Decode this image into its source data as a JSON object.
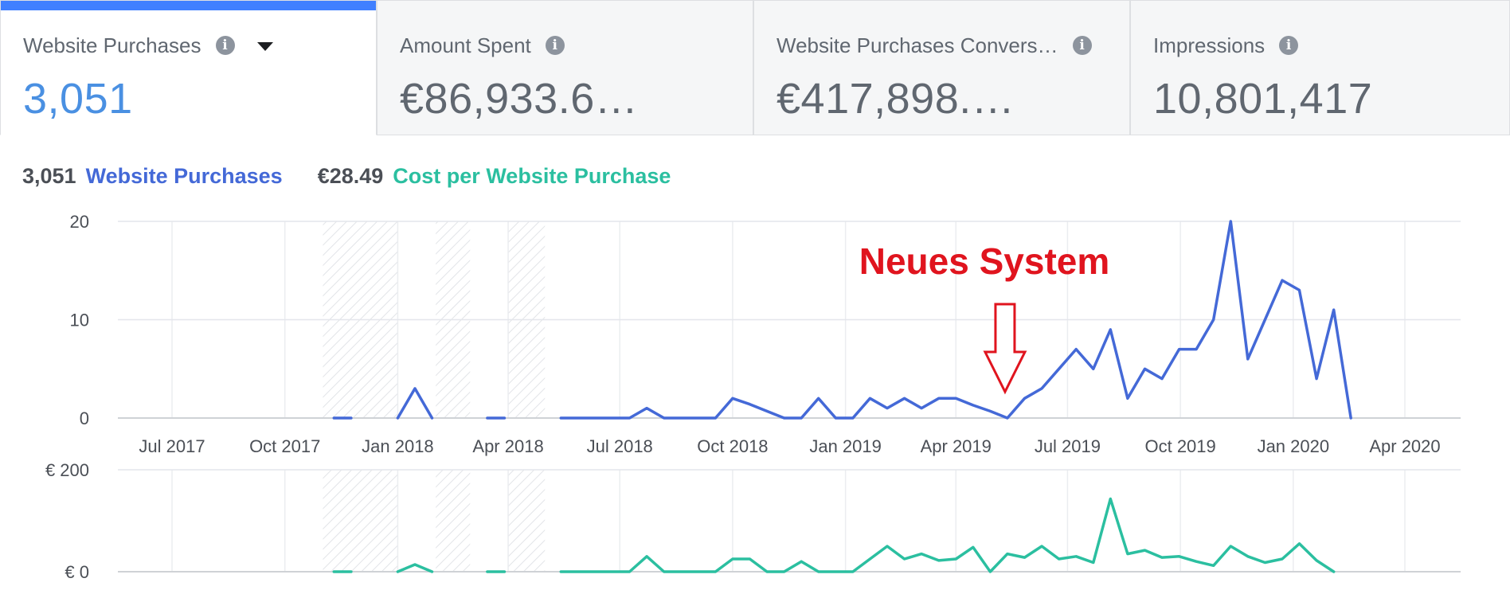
{
  "tabs": [
    {
      "label": "Website Purchases",
      "value": "3,051"
    },
    {
      "label": "Amount Spent",
      "value": "€86,933.6…"
    },
    {
      "label": "Website Purchases Convers…",
      "value": "€417,898.…"
    },
    {
      "label": "Impressions",
      "value": "10,801,417"
    }
  ],
  "legend": {
    "primary_value": "3,051",
    "primary_label": "Website Purchases",
    "secondary_value": "€28.49",
    "secondary_label": "Cost per Website Purchase"
  },
  "annotation": "Neues System",
  "colors": {
    "accent": "#4080ff",
    "purchases": "#4469d7",
    "cost": "#2bbfa0",
    "annotation": "#e0141e"
  },
  "chart_data": [
    {
      "type": "line",
      "x_ticks": [
        "Jul 2017",
        "Oct 2017",
        "Jan 2018",
        "Apr 2018",
        "Jul 2018",
        "Oct 2018",
        "Jan 2019",
        "Apr 2019",
        "Jul 2019",
        "Oct 2019",
        "Jan 2020",
        "Apr 2020"
      ],
      "y_ticks": [
        "0",
        "10",
        "20"
      ],
      "ylim": [
        0,
        20
      ],
      "grid": true,
      "shaded_periods": [
        [
          "Nov 2017",
          "Jan 2018"
        ],
        [
          "Feb 2018",
          "Mar 2018"
        ],
        [
          "Apr 2018",
          "May 2018"
        ]
      ],
      "series": [
        {
          "name": "Website Purchases",
          "segments": [
            [
              [
                "2017-11-10",
                0
              ],
              [
                "2017-11-24",
                0
              ]
            ],
            [
              [
                "2018-01-01",
                0
              ],
              [
                "2018-01-15",
                3
              ],
              [
                "2018-01-29",
                0
              ]
            ],
            [
              [
                "2018-03-15",
                0
              ],
              [
                "2018-03-29",
                0
              ]
            ],
            [
              [
                "2018-05-14",
                0
              ],
              [
                "2018-05-28",
                0
              ],
              [
                "2018-06-11",
                0
              ],
              [
                "2018-06-25",
                0
              ],
              [
                "2018-07-09",
                0
              ],
              [
                "2018-07-23",
                1
              ],
              [
                "2018-08-06",
                0
              ],
              [
                "2018-08-20",
                0
              ],
              [
                "2018-09-03",
                0
              ],
              [
                "2018-09-17",
                0
              ],
              [
                "2018-10-01",
                2
              ],
              [
                "2018-10-15",
                1.4
              ],
              [
                "2018-10-29",
                0.7
              ],
              [
                "2018-11-12",
                0
              ],
              [
                "2018-11-26",
                0
              ],
              [
                "2018-12-10",
                2
              ],
              [
                "2018-12-24",
                0
              ],
              [
                "2019-01-07",
                0
              ],
              [
                "2019-01-21",
                2
              ],
              [
                "2019-02-04",
                1
              ],
              [
                "2019-02-18",
                2
              ],
              [
                "2019-03-04",
                1
              ],
              [
                "2019-03-18",
                2
              ],
              [
                "2019-04-01",
                2
              ],
              [
                "2019-04-15",
                1.3
              ],
              [
                "2019-04-29",
                0.7
              ],
              [
                "2019-05-13",
                0
              ],
              [
                "2019-05-27",
                2
              ],
              [
                "2019-06-10",
                3
              ],
              [
                "2019-06-24",
                5
              ],
              [
                "2019-07-08",
                7
              ],
              [
                "2019-07-22",
                5
              ],
              [
                "2019-08-05",
                9
              ],
              [
                "2019-08-19",
                2
              ],
              [
                "2019-09-02",
                5
              ],
              [
                "2019-09-16",
                4
              ],
              [
                "2019-09-30",
                7
              ],
              [
                "2019-10-14",
                7
              ],
              [
                "2019-10-28",
                10
              ],
              [
                "2019-11-11",
                20
              ],
              [
                "2019-11-25",
                6
              ],
              [
                "2019-12-09",
                10
              ],
              [
                "2019-12-23",
                14
              ],
              [
                "2020-01-06",
                13
              ],
              [
                "2020-01-20",
                4
              ],
              [
                "2020-02-03",
                11
              ],
              [
                "2020-02-17",
                0
              ]
            ]
          ]
        }
      ],
      "annotation": {
        "text": "Neues System",
        "target_x": "2019-05-13"
      }
    },
    {
      "type": "line",
      "y_ticks": [
        "€ 0",
        "€ 200"
      ],
      "ylim": [
        0,
        200
      ],
      "grid": true,
      "series": [
        {
          "name": "Cost per Website Purchase",
          "segments": [
            [
              [
                "2017-11-10",
                0
              ],
              [
                "2017-11-24",
                0
              ]
            ],
            [
              [
                "2018-01-01",
                0
              ],
              [
                "2018-01-15",
                14
              ],
              [
                "2018-01-29",
                0
              ]
            ],
            [
              [
                "2018-03-15",
                0
              ],
              [
                "2018-03-29",
                0
              ]
            ],
            [
              [
                "2018-05-14",
                0
              ],
              [
                "2018-05-28",
                0
              ],
              [
                "2018-06-11",
                0
              ],
              [
                "2018-06-25",
                0
              ],
              [
                "2018-07-09",
                0
              ],
              [
                "2018-07-23",
                30
              ],
              [
                "2018-08-06",
                0
              ],
              [
                "2018-08-20",
                0
              ],
              [
                "2018-09-03",
                0
              ],
              [
                "2018-09-17",
                0
              ],
              [
                "2018-10-01",
                25
              ],
              [
                "2018-10-15",
                25
              ],
              [
                "2018-10-29",
                0
              ],
              [
                "2018-11-12",
                0
              ],
              [
                "2018-11-26",
                20
              ],
              [
                "2018-12-10",
                0
              ],
              [
                "2018-12-24",
                0
              ],
              [
                "2019-01-07",
                0
              ],
              [
                "2019-01-21",
                25
              ],
              [
                "2019-02-04",
                50
              ],
              [
                "2019-02-18",
                25
              ],
              [
                "2019-03-04",
                35
              ],
              [
                "2019-03-18",
                22
              ],
              [
                "2019-04-01",
                25
              ],
              [
                "2019-04-15",
                48
              ],
              [
                "2019-04-29",
                0
              ],
              [
                "2019-05-13",
                35
              ],
              [
                "2019-05-27",
                28
              ],
              [
                "2019-06-10",
                50
              ],
              [
                "2019-06-24",
                25
              ],
              [
                "2019-07-08",
                30
              ],
              [
                "2019-07-22",
                18
              ],
              [
                "2019-08-05",
                143
              ],
              [
                "2019-08-19",
                35
              ],
              [
                "2019-09-02",
                42
              ],
              [
                "2019-09-16",
                28
              ],
              [
                "2019-09-30",
                30
              ],
              [
                "2019-10-14",
                20
              ],
              [
                "2019-10-28",
                12
              ],
              [
                "2019-11-11",
                50
              ],
              [
                "2019-11-25",
                30
              ],
              [
                "2019-12-09",
                18
              ],
              [
                "2019-12-23",
                25
              ],
              [
                "2020-01-06",
                55
              ],
              [
                "2020-01-20",
                22
              ],
              [
                "2020-02-03",
                0
              ]
            ]
          ]
        }
      ]
    }
  ]
}
